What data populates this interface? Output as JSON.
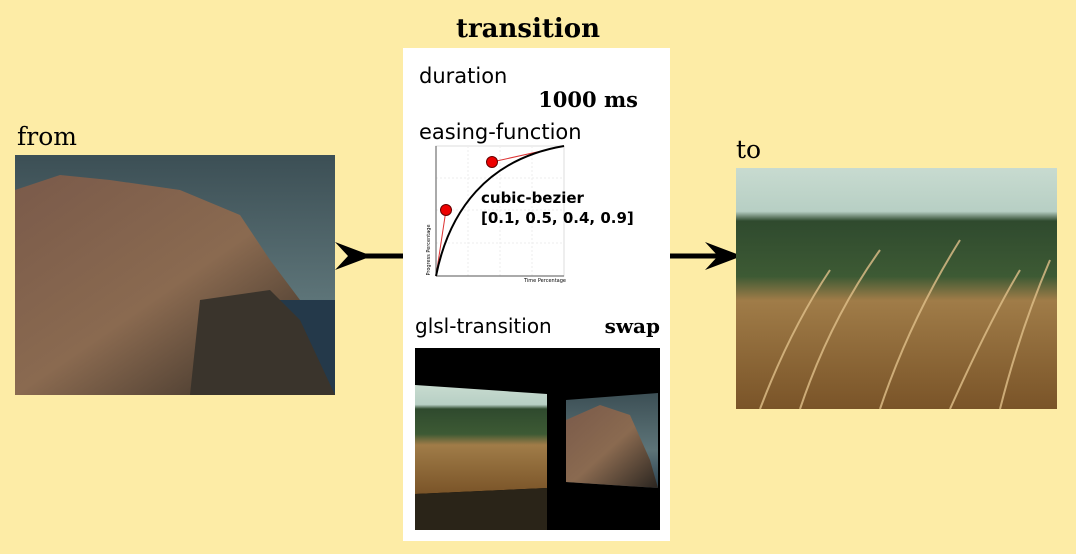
{
  "title": "transition",
  "from": {
    "label": "from"
  },
  "to": {
    "label": "to"
  },
  "panel": {
    "duration_label": "duration",
    "duration_value": "1000 ms",
    "easing_label": "easing-function",
    "easing_name": "cubic-bezier",
    "easing_params": "[0.1, 0.5, 0.4, 0.9]",
    "graph_y_label": "Progress Percentage",
    "graph_x_label": "Time Percentage",
    "glsl_label": "glsl-transition",
    "glsl_value": "swap"
  }
}
